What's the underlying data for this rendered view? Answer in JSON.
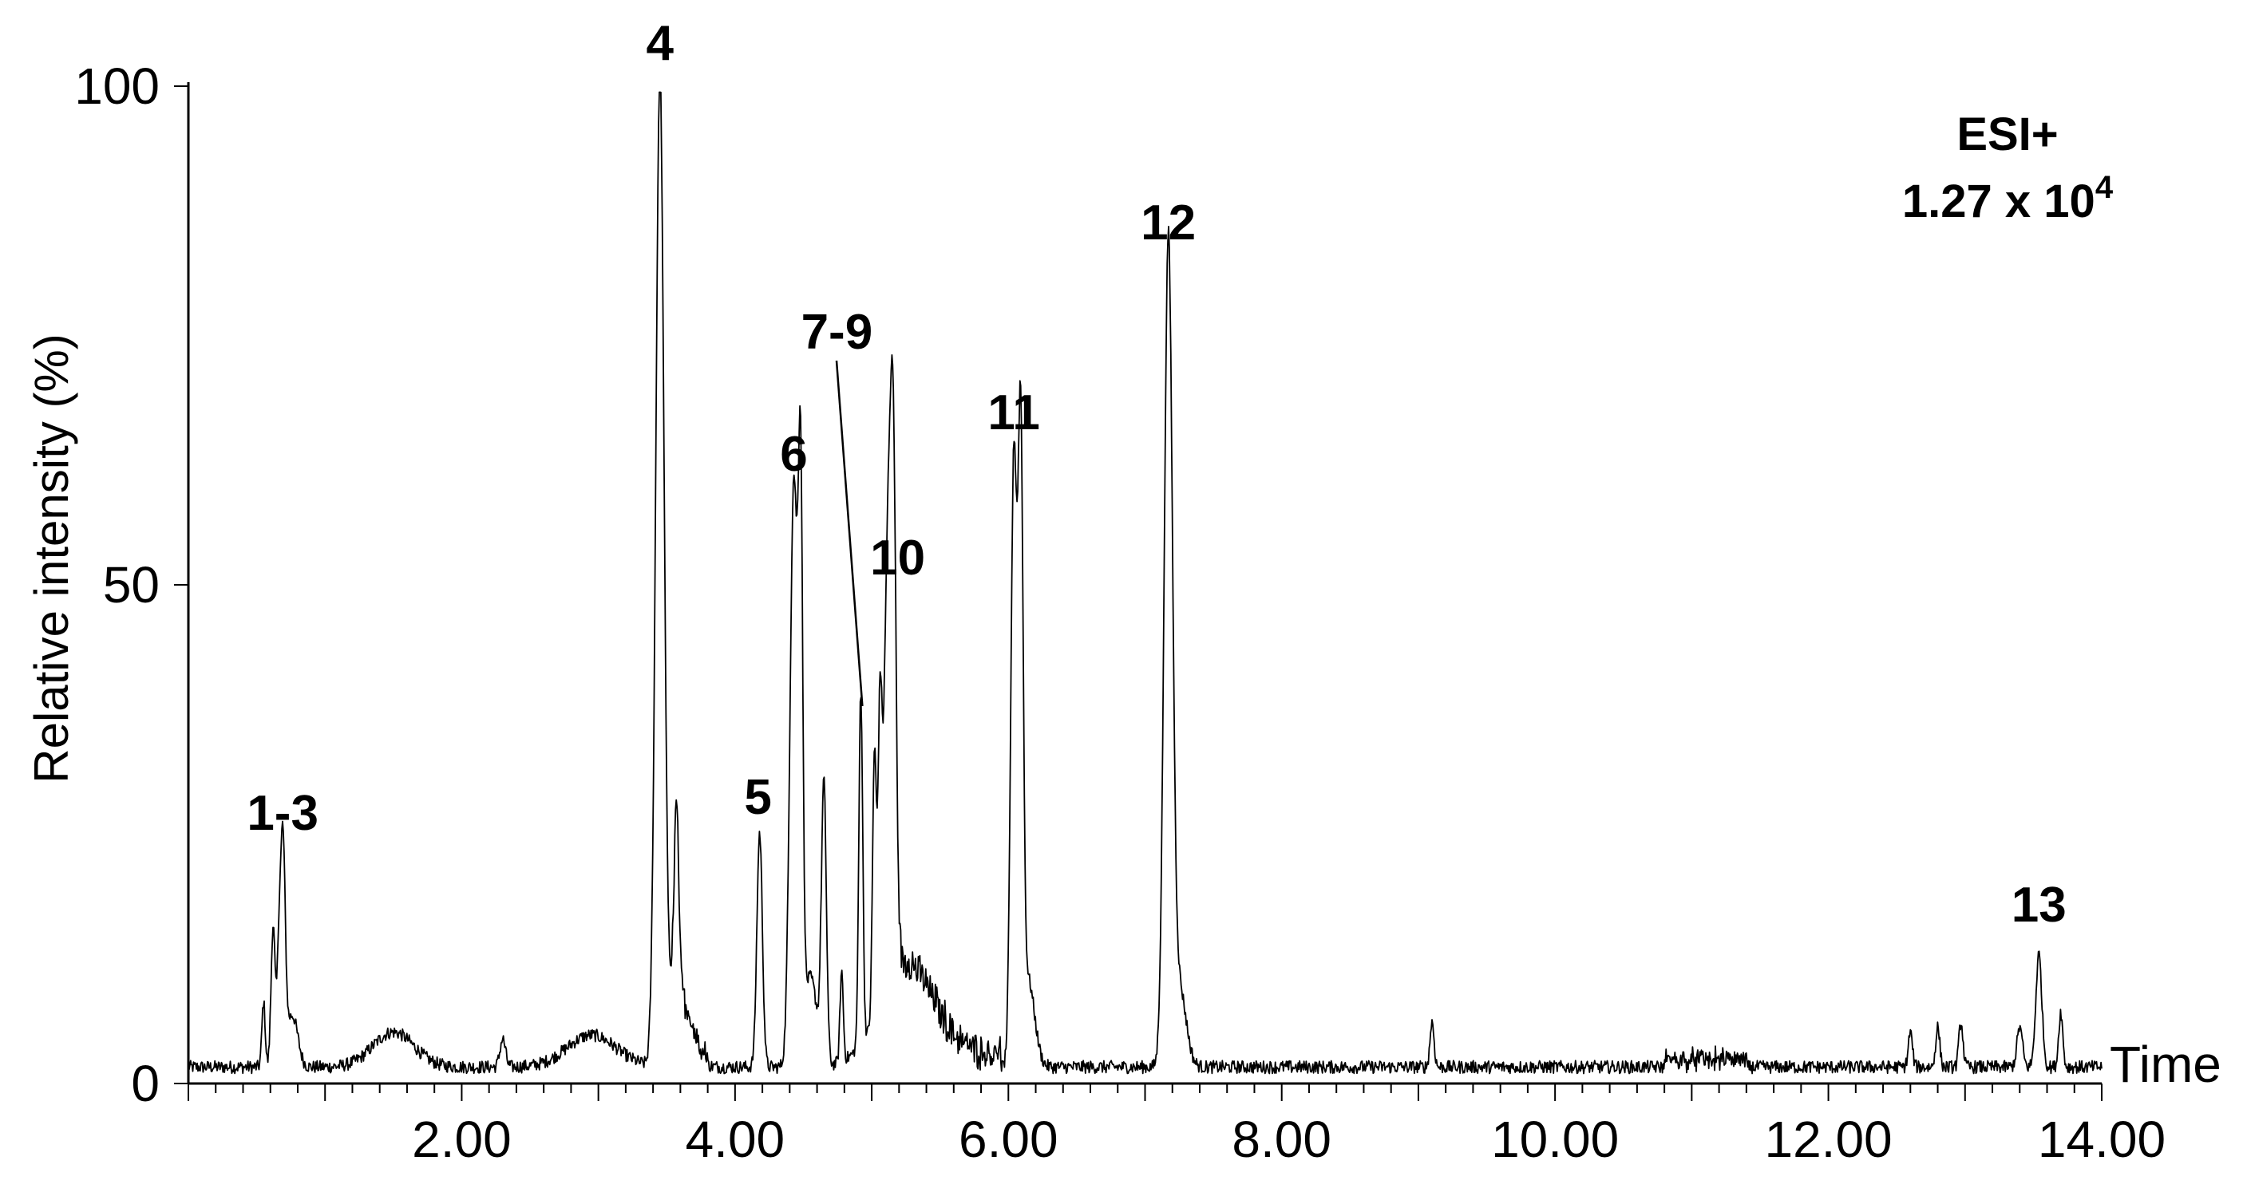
{
  "chart_data": {
    "type": "line",
    "title": "",
    "xlabel": "Time",
    "ylabel": "Relative intensity (%)",
    "xlim": [
      0.0,
      14.0
    ],
    "ylim": [
      0,
      100
    ],
    "x_ticks": [
      2.0,
      4.0,
      6.0,
      8.0,
      10.0,
      12.0,
      14.0
    ],
    "x_tick_labels": [
      "2.00",
      "4.00",
      "6.00",
      "8.00",
      "10.00",
      "12.00",
      "14.00"
    ],
    "y_ticks": [
      0,
      50,
      100
    ],
    "y_tick_labels": [
      "0",
      "50",
      "100"
    ],
    "annotation": {
      "mode": "ESI+",
      "intensity_base": "1.27 x 10",
      "intensity_exp": "4"
    },
    "baseline": 1.0,
    "peaks": [
      {
        "t": 0.55,
        "h": 6.5,
        "w": 0.012
      },
      {
        "t": 0.62,
        "h": 14.2,
        "w": 0.015
      },
      {
        "t": 0.66,
        "h": 8.5,
        "w": 0.012
      },
      {
        "t": 0.69,
        "h": 22.9,
        "w": 0.018
      },
      {
        "t": 0.76,
        "h": 5.2,
        "w": 0.04
      },
      {
        "t": 1.5,
        "h": 3.5,
        "w": 0.15
      },
      {
        "t": 2.3,
        "h": 2.8,
        "w": 0.02
      },
      {
        "t": 2.95,
        "h": 3.2,
        "w": 0.18
      },
      {
        "t": 3.45,
        "h": 98.5,
        "w": 0.03
      },
      {
        "t": 3.57,
        "h": 20.0,
        "w": 0.018
      },
      {
        "t": 3.6,
        "h": 6.0,
        "w": 0.08
      },
      {
        "t": 4.18,
        "h": 23.5,
        "w": 0.02
      },
      {
        "t": 4.43,
        "h": 58.5,
        "w": 0.028
      },
      {
        "t": 4.48,
        "h": 50.0,
        "w": 0.016
      },
      {
        "t": 4.55,
        "h": 9.0,
        "w": 0.05
      },
      {
        "t": 4.65,
        "h": 27.5,
        "w": 0.018
      },
      {
        "t": 4.78,
        "h": 9.0,
        "w": 0.012
      },
      {
        "t": 4.92,
        "h": 35.5,
        "w": 0.014
      },
      {
        "t": 5.02,
        "h": 26.8,
        "w": 0.014
      },
      {
        "t": 5.06,
        "h": 27.0,
        "w": 0.014
      },
      {
        "t": 5.12,
        "h": 46.0,
        "w": 0.03
      },
      {
        "t": 5.16,
        "h": 40.0,
        "w": 0.02
      },
      {
        "t": 5.25,
        "h": 9.0,
        "w": 0.2
      },
      {
        "t": 6.04,
        "h": 60.5,
        "w": 0.022
      },
      {
        "t": 6.09,
        "h": 58.5,
        "w": 0.018
      },
      {
        "t": 6.14,
        "h": 9.0,
        "w": 0.05
      },
      {
        "t": 7.17,
        "h": 81.5,
        "w": 0.03
      },
      {
        "t": 7.25,
        "h": 8.0,
        "w": 0.05
      },
      {
        "t": 9.1,
        "h": 4.5,
        "w": 0.015
      },
      {
        "t": 12.6,
        "h": 3.5,
        "w": 0.015
      },
      {
        "t": 12.8,
        "h": 4.0,
        "w": 0.015
      },
      {
        "t": 12.97,
        "h": 4.5,
        "w": 0.015
      },
      {
        "t": 13.4,
        "h": 4.0,
        "w": 0.02
      },
      {
        "t": 13.54,
        "h": 11.3,
        "w": 0.022
      },
      {
        "t": 13.7,
        "h": 5.5,
        "w": 0.015
      }
    ],
    "peak_labels": [
      {
        "text": "1-3",
        "t": 0.69
      },
      {
        "text": "4",
        "t": 3.45
      },
      {
        "text": "5",
        "t": 4.18
      },
      {
        "text": "6",
        "t": 4.43
      },
      {
        "text": "7-9",
        "t": 4.92
      },
      {
        "text": "10",
        "t": 5.12
      },
      {
        "text": "11",
        "t": 6.04
      },
      {
        "text": "12",
        "t": 7.17
      },
      {
        "text": "13",
        "t": 13.54
      }
    ]
  }
}
